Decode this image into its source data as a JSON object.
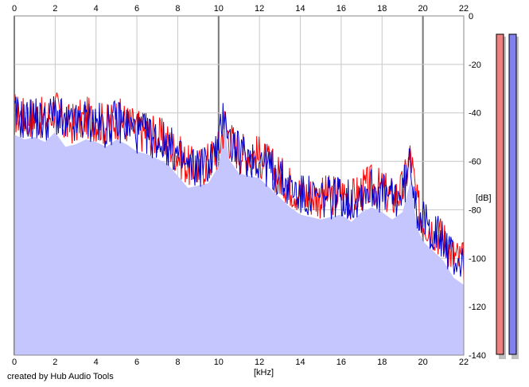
{
  "chart_data": {
    "type": "line",
    "xlabel": "[kHz]",
    "ylabel": "[dB]",
    "xlim": [
      0,
      22
    ],
    "ylim": [
      -140,
      0
    ],
    "x_ticks": [
      "0",
      "2",
      "4",
      "6",
      "8",
      "10",
      "12",
      "14",
      "16",
      "18",
      "20",
      "22"
    ],
    "y_ticks": [
      "0",
      "-20",
      "-40",
      "-60",
      "-80",
      "-100",
      "-120",
      "-140"
    ],
    "grid": true,
    "series": [
      {
        "channel": "red",
        "color": "#ff0000",
        "x": [
          0,
          0.5,
          1,
          1.5,
          2,
          2.5,
          3,
          3.5,
          4,
          4.5,
          5,
          5.5,
          6,
          6.5,
          7,
          7.5,
          8,
          8.5,
          9,
          9.5,
          10,
          10.3,
          10.5,
          11,
          11.5,
          12,
          12.5,
          13,
          13.5,
          14,
          14.5,
          15,
          15.5,
          16,
          16.5,
          17,
          17.5,
          18,
          18.5,
          19,
          19.4,
          19.7,
          20,
          20.5,
          21,
          21.5,
          22
        ],
        "y": [
          -40,
          -42,
          -41,
          -43,
          -38,
          -45,
          -44,
          -42,
          -43,
          -45,
          -42,
          -44,
          -47,
          -48,
          -50,
          -52,
          -57,
          -62,
          -63,
          -60,
          -55,
          -44,
          -50,
          -56,
          -57,
          -58,
          -62,
          -66,
          -70,
          -73,
          -74,
          -75,
          -74,
          -73,
          -76,
          -72,
          -70,
          -72,
          -75,
          -72,
          -57,
          -78,
          -84,
          -88,
          -92,
          -99,
          -102
        ]
      },
      {
        "channel": "blue",
        "color": "#0000cc",
        "x": [
          0,
          0.5,
          1,
          1.5,
          2,
          2.5,
          3,
          3.5,
          4,
          4.5,
          5,
          5.5,
          6,
          6.5,
          7,
          7.5,
          8,
          8.5,
          9,
          9.5,
          10,
          10.3,
          10.5,
          11,
          11.5,
          12,
          12.5,
          13,
          13.5,
          14,
          14.5,
          15,
          15.5,
          16,
          16.5,
          17,
          17.5,
          18,
          18.5,
          19,
          19.4,
          19.7,
          20,
          20.5,
          21,
          21.5,
          22
        ],
        "y": [
          -41,
          -43,
          -42,
          -44,
          -40,
          -46,
          -45,
          -43,
          -44,
          -46,
          -43,
          -45,
          -48,
          -49,
          -51,
          -53,
          -58,
          -63,
          -62,
          -61,
          -54,
          -37,
          -51,
          -57,
          -58,
          -59,
          -63,
          -67,
          -71,
          -74,
          -75,
          -76,
          -75,
          -74,
          -77,
          -73,
          -71,
          -73,
          -76,
          -73,
          -60,
          -79,
          -85,
          -89,
          -93,
          -100,
          -103
        ]
      }
    ],
    "fill_color": "#c6c6ff"
  },
  "meters": [
    {
      "name": "left",
      "color": "#f08080"
    },
    {
      "name": "right",
      "color": "#8080f0"
    }
  ],
  "footer": {
    "credit": "created by Hub Audio Tools"
  }
}
